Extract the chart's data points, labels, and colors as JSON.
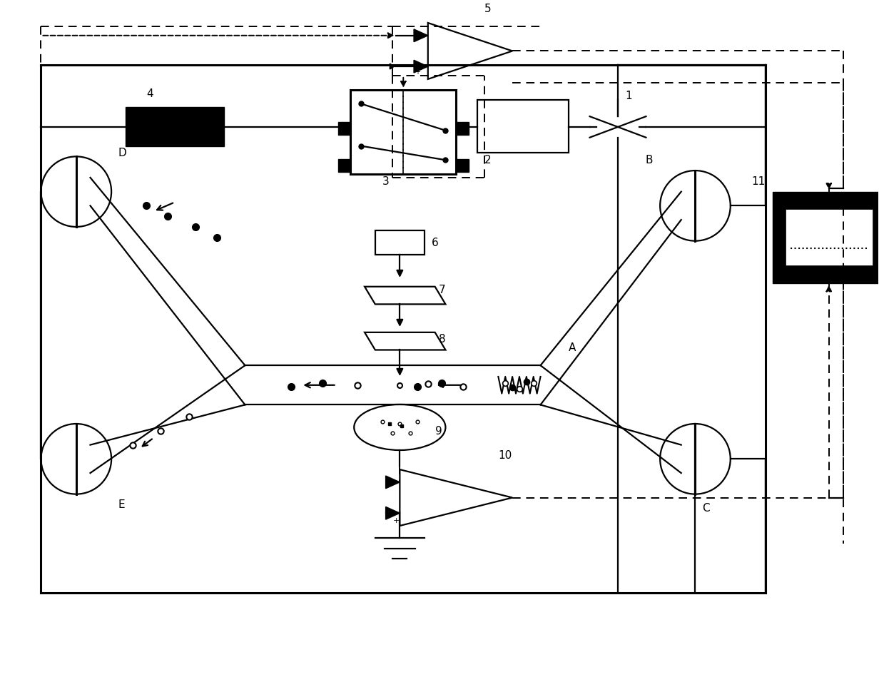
{
  "figsize": [
    12.39,
    9.63
  ],
  "dpi": 100,
  "xlim": [
    0,
    124
  ],
  "ylim": [
    0,
    96
  ],
  "bg": "#ffffff"
}
